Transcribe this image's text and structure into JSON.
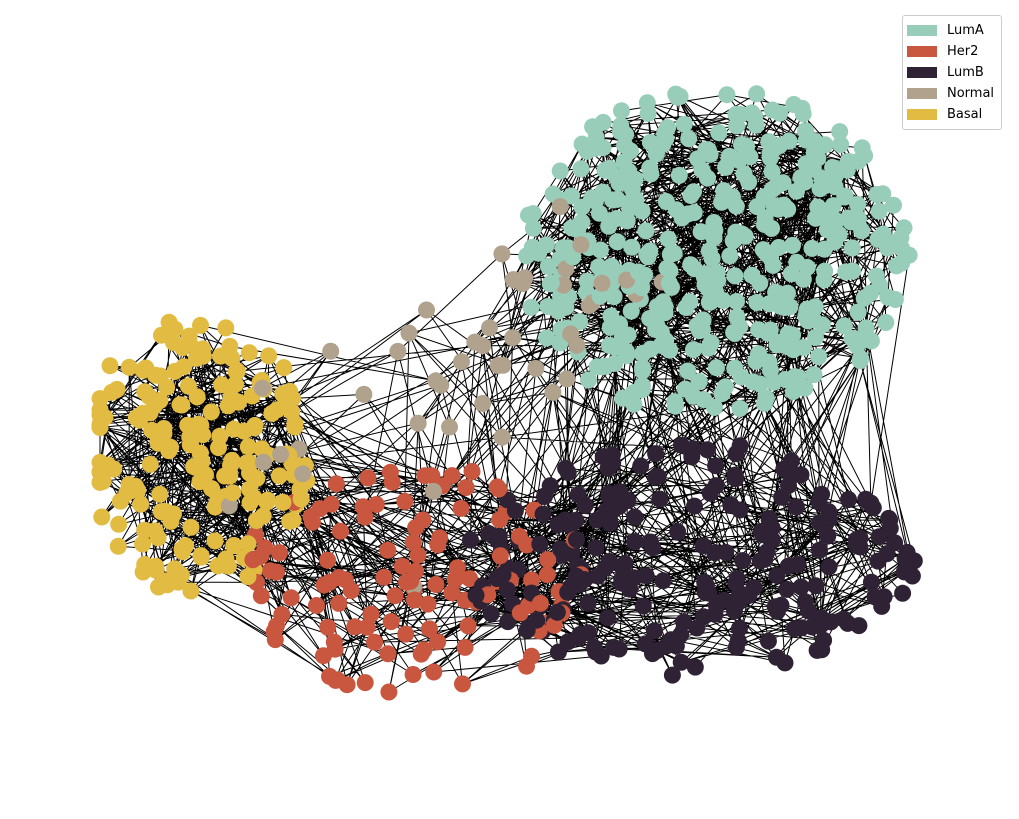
{
  "legend": {
    "items": [
      {
        "label": "LumA",
        "color": "#98cdb9"
      },
      {
        "label": "Her2",
        "color": "#c9573f"
      },
      {
        "label": "LumB",
        "color": "#2e2234"
      },
      {
        "label": "Normal",
        "color": "#b0a28c"
      },
      {
        "label": "Basal",
        "color": "#e2bb42"
      }
    ]
  },
  "edge_color": "#000000",
  "background": "#ffffff",
  "communities": [
    {
      "label": "LumA",
      "node_count": 420
    },
    {
      "label": "LumB",
      "node_count": 230
    },
    {
      "label": "Her2",
      "node_count": 120
    },
    {
      "label": "Basal",
      "node_count": 190
    },
    {
      "label": "Normal",
      "node_count": 45
    }
  ]
}
